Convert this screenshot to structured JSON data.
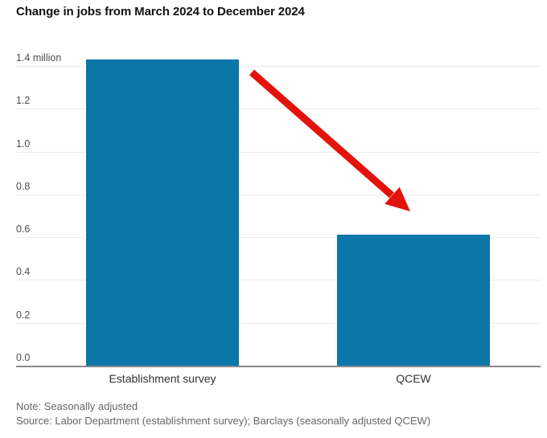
{
  "header": {
    "title": "Change in jobs from March 2024 to December 2024"
  },
  "chart_data": {
    "type": "bar",
    "title": "Change in jobs from March 2024 to December 2024",
    "categories": [
      "Establishment survey",
      "QCEW"
    ],
    "values": [
      1.43,
      0.61
    ],
    "unit": "million",
    "xlabel": "",
    "ylabel": "million",
    "ylim": [
      0,
      1.4
    ],
    "grid": true,
    "legend": "none",
    "y_ticks": [
      {
        "value": 0.0,
        "label": "0.0"
      },
      {
        "value": 0.2,
        "label": "0.2"
      },
      {
        "value": 0.4,
        "label": "0.4"
      },
      {
        "value": 0.6,
        "label": "0.6"
      },
      {
        "value": 0.8,
        "label": "0.8"
      },
      {
        "value": 1.0,
        "label": "1.0"
      },
      {
        "value": 1.2,
        "label": "1.2"
      },
      {
        "value": 1.4,
        "label": "1.4 million"
      }
    ],
    "annotation": {
      "shape": "down-right-arrow",
      "color": "#e3120b"
    }
  },
  "footer": {
    "note": "Note: Seasonally adjusted",
    "source": "Source: Labor Department (establishment survey); Barclays (seasonally adjusted QCEW)"
  },
  "colors": {
    "bar": "#0b76a8",
    "arrow": "#e3120b",
    "grid_line": "#ececec",
    "baseline": "#8a8a8a",
    "title_text": "#111111",
    "tick_text": "#4d4d4d",
    "category_text": "#333333",
    "footer_text": "#666666",
    "background": "#ffffff"
  }
}
